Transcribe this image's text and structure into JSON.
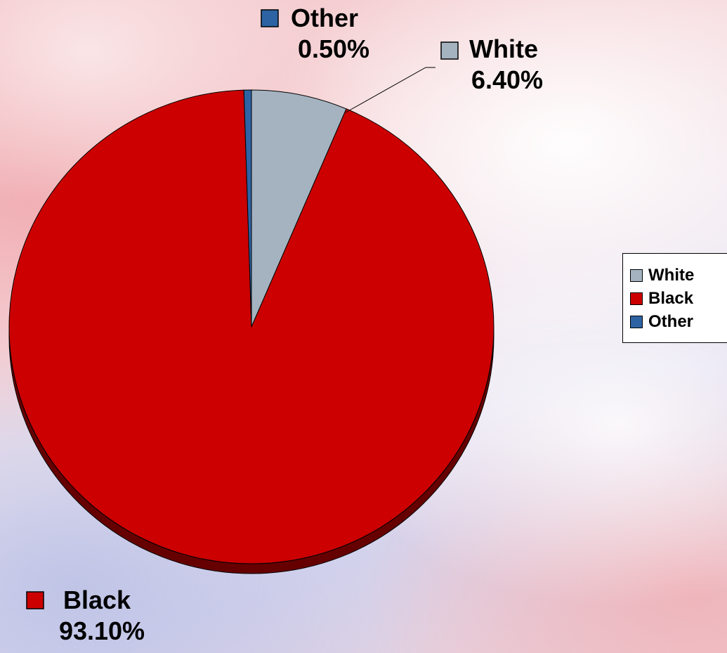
{
  "chart_data": {
    "type": "pie",
    "title": "",
    "slices": [
      {
        "label": "White",
        "value": 6.4,
        "value_label": "6.40%",
        "color": "#a5b3c0"
      },
      {
        "label": "Black",
        "value": 93.1,
        "value_label": "93.10%",
        "color": "#cc0000"
      },
      {
        "label": "Other",
        "value": 0.5,
        "value_label": "0.50%",
        "color": "#2d63a3"
      }
    ],
    "start_angle_deg": 0,
    "direction": "clockwise",
    "style": "3d-tilted",
    "legend": {
      "position": "right",
      "items": [
        "White",
        "Black",
        "Other"
      ]
    },
    "data_labels": "category-and-percent"
  }
}
